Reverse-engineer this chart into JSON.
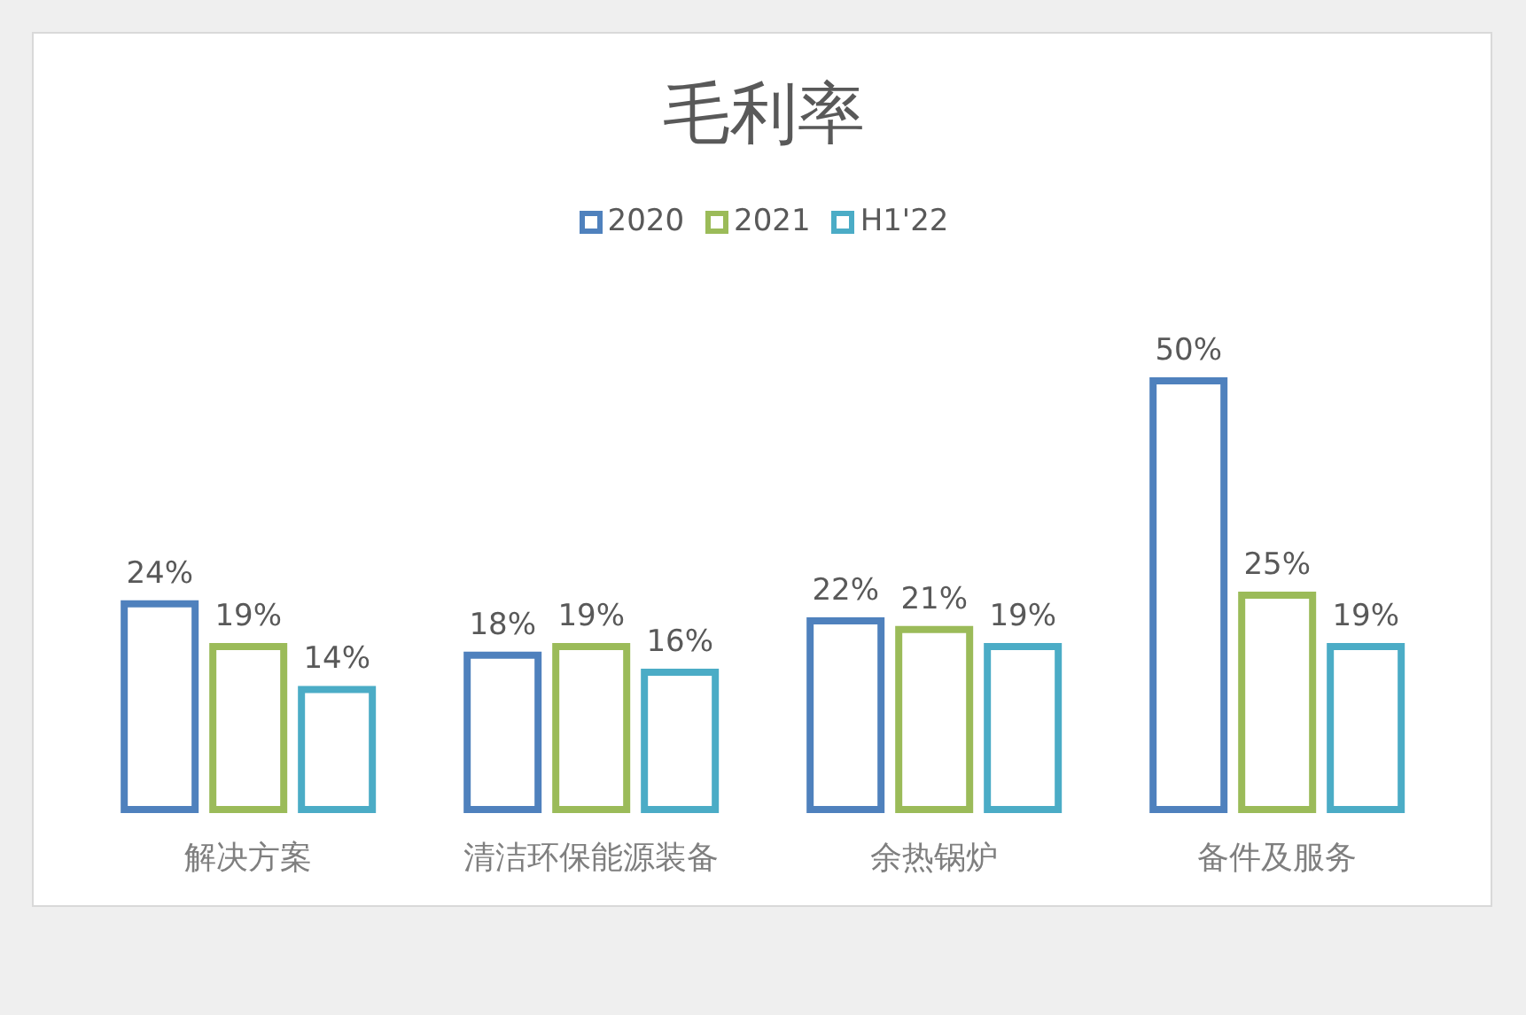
{
  "chart_data": {
    "type": "bar",
    "title": "毛利率",
    "categories": [
      "解决方案",
      "清洁环保能源装备",
      "余热锅炉",
      "备件及服务"
    ],
    "series": [
      {
        "name": "2020",
        "color": "#4f81bd",
        "values": [
          24,
          18,
          22,
          50
        ],
        "value_labels": [
          "24%",
          "18%",
          "22%",
          "50%"
        ]
      },
      {
        "name": "2021",
        "color": "#9bbb59",
        "values": [
          19,
          19,
          21,
          25
        ],
        "value_labels": [
          "19%",
          "19%",
          "21%",
          "25%"
        ]
      },
      {
        "name": "H1'22",
        "color": "#4bacc6",
        "values": [
          14,
          16,
          19,
          19
        ],
        "value_labels": [
          "14%",
          "16%",
          "19%",
          "19%"
        ]
      }
    ],
    "legend": "top"
  }
}
